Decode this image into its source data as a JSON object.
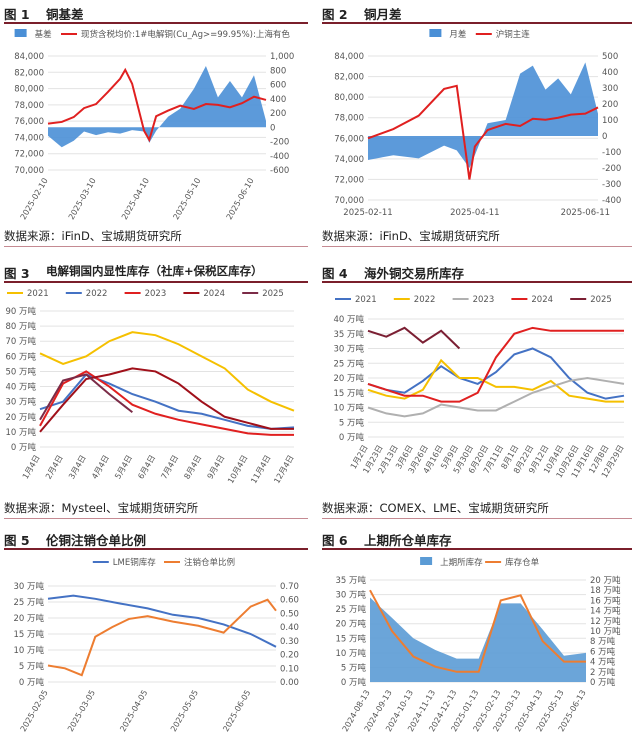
{
  "layout_panels": [
    {
      "header": {
        "fig": "图 1",
        "title": "铜基差"
      },
      "source": "",
      "chart_data": {
        "type": "bar+line",
        "legend_position": "top",
        "series": [
          {
            "name": "基差",
            "kind": "area",
            "axis": "right",
            "color": "#4a8fd6",
            "x": [
              "2025-02-10",
              "2025-02-18",
              "2025-02-25",
              "2025-03-03",
              "2025-03-10",
              "2025-03-17",
              "2025-03-24",
              "2025-03-31",
              "2025-04-07",
              "2025-04-10",
              "2025-04-14",
              "2025-04-21",
              "2025-04-28",
              "2025-05-06",
              "2025-05-13",
              "2025-05-20",
              "2025-05-27",
              "2025-06-03",
              "2025-06-10",
              "2025-06-17"
            ],
            "values": [
              -120,
              -280,
              -190,
              -60,
              -110,
              -70,
              -90,
              -40,
              -60,
              -220,
              -50,
              150,
              260,
              540,
              860,
              420,
              650,
              420,
              730,
              90
            ]
          },
          {
            "name": "现货含税均价:1#电解铜(Cu_Ag>=99.95%):上海有色",
            "kind": "line",
            "axis": "left",
            "color": "#e02020",
            "x": [
              "2025-02-10",
              "2025-02-18",
              "2025-02-25",
              "2025-03-03",
              "2025-03-10",
              "2025-03-17",
              "2025-03-24",
              "2025-03-27",
              "2025-03-31",
              "2025-04-07",
              "2025-04-10",
              "2025-04-14",
              "2025-04-21",
              "2025-04-28",
              "2025-05-06",
              "2025-05-13",
              "2025-05-20",
              "2025-05-27",
              "2025-06-03",
              "2025-06-10",
              "2025-06-17"
            ],
            "values": [
              75700,
              75900,
              76500,
              77600,
              78100,
              79600,
              81200,
              82300,
              80600,
              74800,
              73700,
              76600,
              77300,
              77900,
              77500,
              78100,
              78000,
              77700,
              78200,
              79000,
              78600
            ]
          }
        ],
        "x_ticks": [
          "2025-02-10",
          "2025-03-10",
          "2025-04-10",
          "2025-05-10",
          "2025-06-10"
        ],
        "y_left": {
          "ticks": [
            "84,000",
            "82,000",
            "80,000",
            "78,000",
            "76,000",
            "74,000",
            "72,000",
            "70,000"
          ],
          "range": [
            70000,
            84000
          ]
        },
        "y_right": {
          "ticks": [
            "1,000",
            "800",
            "600",
            "400",
            "200",
            "0",
            "-200",
            "-400",
            "-600"
          ],
          "range": [
            -600,
            1000
          ]
        }
      }
    },
    {
      "header": {
        "fig": "图 2",
        "title": "铜月差"
      },
      "source": "",
      "chart_data": {
        "type": "bar+line",
        "legend_position": "top",
        "series": [
          {
            "name": "月差",
            "kind": "area",
            "axis": "right",
            "color": "#4a8fd6",
            "x": [
              "2025-02-11",
              "2025-02-25",
              "2025-03-11",
              "2025-03-25",
              "2025-04-01",
              "2025-04-08",
              "2025-04-11",
              "2025-04-18",
              "2025-04-28",
              "2025-05-06",
              "2025-05-13",
              "2025-05-20",
              "2025-05-27",
              "2025-06-03",
              "2025-06-11",
              "2025-06-18"
            ],
            "values": [
              -150,
              -120,
              -140,
              -60,
              -90,
              -200,
              -120,
              80,
              100,
              390,
              440,
              290,
              360,
              260,
              460,
              140
            ]
          },
          {
            "name": "沪铜主连",
            "kind": "line",
            "axis": "left",
            "color": "#e02020",
            "x": [
              "2025-02-11",
              "2025-02-25",
              "2025-03-11",
              "2025-03-25",
              "2025-04-01",
              "2025-04-08",
              "2025-04-11",
              "2025-04-18",
              "2025-04-28",
              "2025-05-06",
              "2025-05-13",
              "2025-05-20",
              "2025-05-27",
              "2025-06-03",
              "2025-06-11",
              "2025-06-18"
            ],
            "values": [
              76000,
              76900,
              78200,
              80800,
              81100,
              72000,
              75200,
              76800,
              77400,
              77200,
              77900,
              77800,
              78000,
              78300,
              78400,
              79000
            ]
          }
        ],
        "x_ticks": [
          "2025-02-11",
          "2025-04-11",
          "2025-06-11"
        ],
        "y_left": {
          "ticks": [
            "84,000",
            "82,000",
            "80,000",
            "78,000",
            "76,000",
            "74,000",
            "72,000",
            "70,000"
          ],
          "range": [
            70000,
            84000
          ]
        },
        "y_right": {
          "ticks": [
            "500",
            "400",
            "300",
            "200",
            "100",
            "0",
            "-100",
            "-200",
            "-300",
            "-400"
          ],
          "range": [
            -400,
            500
          ]
        }
      }
    },
    {
      "header": {
        "fig": "图 3",
        "title": "电解铜国内显性库存（社库+保税区库存）"
      },
      "source": "数据来源：Mysteel、宝城期货研究所",
      "chart_data": {
        "type": "line",
        "legend_position": "top",
        "x_ticks": [
          "1月4日",
          "2月4日",
          "3月4日",
          "4月4日",
          "5月4日",
          "6月4日",
          "7月4日",
          "8月4日",
          "9月4日",
          "10月4日",
          "11月4日",
          "12月4日"
        ],
        "y_ticks": [
          "90 万吨",
          "80 万吨",
          "70 万吨",
          "60 万吨",
          "50 万吨",
          "40 万吨",
          "30 万吨",
          "20 万吨",
          "10 万吨",
          "0 万吨"
        ],
        "y_range": [
          0,
          90
        ],
        "series": [
          {
            "name": "2021",
            "color": "#f5c000",
            "values": [
              62,
              55,
              60,
              70,
              76,
              74,
              68,
              60,
              52,
              38,
              30,
              24
            ]
          },
          {
            "name": "2022",
            "color": "#4472c4",
            "values": [
              25,
              30,
              48,
              42,
              35,
              30,
              24,
              22,
              18,
              14,
              12,
              13
            ]
          },
          {
            "name": "2023",
            "color": "#e02020",
            "values": [
              14,
              42,
              50,
              40,
              28,
              22,
              18,
              15,
              12,
              9,
              8,
              8
            ]
          },
          {
            "name": "2024",
            "color": "#a0101a",
            "values": [
              10,
              28,
              45,
              48,
              52,
              50,
              42,
              30,
              20,
              16,
              12,
              12
            ]
          },
          {
            "name": "2025",
            "color": "#7b2b47",
            "values": [
              18,
              44,
              48,
              35,
              23,
              null,
              null,
              null,
              null,
              null,
              null,
              null
            ]
          }
        ]
      }
    },
    {
      "header": {
        "fig": "图 4",
        "title": "海外铜交易所库存"
      },
      "source": "数据来源：COMEX、LME、宝城期货研究所",
      "chart_data": {
        "type": "line",
        "legend_position": "top",
        "x_ticks": [
          "1月2日",
          "1月23日",
          "2月13日",
          "3月6日",
          "3月26日",
          "4月16日",
          "5月9日",
          "5月30日",
          "6月20日",
          "7月11日",
          "8月1日",
          "8月22日",
          "9月12日",
          "10月4日",
          "10月26日",
          "11月16日",
          "12月8日",
          "12月29日"
        ],
        "y_ticks": [
          "40 万吨",
          "35 万吨",
          "30 万吨",
          "25 万吨",
          "20 万吨",
          "15 万吨",
          "10 万吨",
          "5 万吨",
          "0 万吨"
        ],
        "y_range": [
          0,
          40
        ],
        "series": [
          {
            "name": "2021",
            "color": "#4472c4",
            "values": [
              18,
              16,
              15,
              19,
              24,
              20,
              18,
              22,
              28,
              30,
              27,
              20,
              15,
              13,
              14
            ]
          },
          {
            "name": "2022",
            "color": "#f5c000",
            "values": [
              16,
              14,
              13,
              16,
              26,
              20,
              20,
              17,
              17,
              16,
              19,
              14,
              13,
              12,
              12
            ]
          },
          {
            "name": "2023",
            "color": "#b0b0b0",
            "values": [
              10,
              8,
              7,
              8,
              11,
              10,
              9,
              9,
              12,
              15,
              17,
              19,
              20,
              19,
              18
            ]
          },
          {
            "name": "2024",
            "color": "#e02020",
            "values": [
              18,
              16,
              14,
              14,
              12,
              12,
              15,
              27,
              35,
              37,
              36,
              36,
              36,
              36,
              36
            ]
          },
          {
            "name": "2025",
            "color": "#7b1f33",
            "values": [
              36,
              34,
              37,
              32,
              36,
              30,
              null,
              null,
              null,
              null,
              null,
              null,
              null,
              null,
              null
            ]
          }
        ]
      }
    },
    {
      "header": {
        "fig": "图 5",
        "title": "伦铜注销仓单比例"
      },
      "source": "",
      "chart_data": {
        "type": "line",
        "legend_position": "top",
        "x_ticks": [
          "2025-02-05",
          "2025-03-05",
          "2025-04-05",
          "2025-05-05",
          "2025-06-05"
        ],
        "y_left": {
          "ticks": [
            "30 万吨",
            "25 万吨",
            "20 万吨",
            "15 万吨",
            "10 万吨",
            "5 万吨",
            "0 万吨"
          ],
          "range": [
            0,
            30
          ]
        },
        "y_right": {
          "ticks": [
            "0.70",
            "0.60",
            "0.50",
            "0.40",
            "0.30",
            "0.20",
            "0.10",
            "0.00"
          ],
          "range": [
            0,
            0.7
          ]
        },
        "series": [
          {
            "name": "LME铜库存",
            "axis": "left",
            "color": "#4472c4",
            "x": [
              "2025-02-05",
              "2025-02-20",
              "2025-03-05",
              "2025-03-20",
              "2025-04-05",
              "2025-04-20",
              "2025-05-05",
              "2025-05-20",
              "2025-06-05",
              "2025-06-20"
            ],
            "values": [
              26,
              27,
              26,
              24.5,
              23,
              21,
              20,
              18,
              15,
              11
            ]
          },
          {
            "name": "注销仓单比例",
            "axis": "right",
            "color": "#ed7d31",
            "x": [
              "2025-02-05",
              "2025-02-15",
              "2025-02-25",
              "2025-03-05",
              "2025-03-15",
              "2025-03-25",
              "2025-04-05",
              "2025-04-20",
              "2025-05-05",
              "2025-05-20",
              "2025-06-05",
              "2025-06-15",
              "2025-06-20"
            ],
            "values": [
              0.12,
              0.1,
              0.05,
              0.33,
              0.4,
              0.46,
              0.48,
              0.44,
              0.41,
              0.36,
              0.55,
              0.6,
              0.52
            ]
          }
        ]
      }
    },
    {
      "header": {
        "fig": "图 6",
        "title": "上期所仓单库存"
      },
      "source": "",
      "chart_data": {
        "type": "bar+line",
        "legend_position": "top",
        "x_ticks": [
          "2024-08-13",
          "2024-09-13",
          "2024-10-13",
          "2024-11-13",
          "2024-12-13",
          "2025-01-13",
          "2025-02-13",
          "2025-03-13",
          "2025-04-13",
          "2025-05-13",
          "2025-06-13"
        ],
        "y_left": {
          "ticks": [
            "35 万吨",
            "30 万吨",
            "25 万吨",
            "20 万吨",
            "15 万吨",
            "10 万吨",
            "5 万吨",
            "0 万吨"
          ],
          "range": [
            0,
            35
          ]
        },
        "y_right": {
          "ticks": [
            "20 万吨",
            "18 万吨",
            "16 万吨",
            "14 万吨",
            "12 万吨",
            "10 万吨",
            "8 万吨",
            "6 万吨",
            "4 万吨",
            "2 万吨",
            "0 万吨"
          ],
          "range": [
            0,
            20
          ]
        },
        "series": [
          {
            "name": "上期所库存",
            "kind": "area",
            "axis": "left",
            "color": "#5b9bd5",
            "x": [
              "2024-08-13",
              "2024-09-13",
              "2024-10-13",
              "2024-11-13",
              "2024-12-13",
              "2025-01-13",
              "2025-02-13",
              "2025-03-13",
              "2025-04-13",
              "2025-05-13",
              "2025-06-13"
            ],
            "values": [
              29,
              22,
              15,
              11,
              8,
              8,
              27,
              27,
              18,
              9,
              10
            ]
          },
          {
            "name": "库存仓单",
            "kind": "line",
            "axis": "right",
            "color": "#ed7d31",
            "x": [
              "2024-08-13",
              "2024-09-13",
              "2024-10-13",
              "2024-11-13",
              "2024-12-13",
              "2025-01-13",
              "2025-02-13",
              "2025-03-13",
              "2025-04-13",
              "2025-05-13",
              "2025-06-13"
            ],
            "values": [
              18,
              10,
              5,
              3,
              2,
              2,
              16,
              17,
              8,
              4,
              4
            ]
          }
        ]
      }
    }
  ],
  "footers": {
    "row1": "数据来源：iFinD、宝城期货研究所",
    "row2": "数据来源：iFinD、宝城期货研究所"
  }
}
